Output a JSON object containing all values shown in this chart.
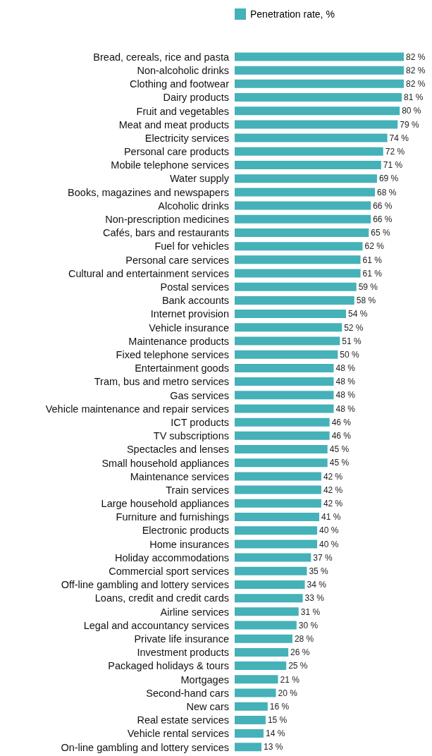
{
  "chart_data": {
    "type": "bar",
    "orientation": "horizontal",
    "legend": "top",
    "categories": [
      "Bread, cereals, rice and pasta",
      "Non-alcoholic drinks",
      "Clothing and footwear",
      "Dairy products",
      "Fruit and vegetables",
      "Meat and meat products",
      "Electricity services",
      "Personal care products",
      "Mobile telephone services",
      "Water supply",
      "Books, magazines and newspapers",
      "Alcoholic drinks",
      "Non-prescription medicines",
      "Cafés, bars and restaurants",
      "Fuel for vehicles",
      "Personal care services",
      "Cultural and entertainment services",
      "Postal services",
      "Bank accounts",
      "Internet provision",
      "Vehicle insurance",
      "Maintenance products",
      "Fixed telephone services",
      "Entertainment goods",
      "Tram, bus and metro services",
      "Gas services",
      "Vehicle maintenance and repair services",
      "ICT products",
      "TV subscriptions",
      "Spectacles and lenses",
      "Small household appliances",
      "Maintenance services",
      "Train services",
      "Large household appliances",
      "Furniture and furnishings",
      "Electronic products",
      "Home insurances",
      "Holiday accommodations",
      "Commercial sport services",
      "Off-line gambling and lottery services",
      "Loans, credit and credit cards",
      "Airline services",
      "Legal and accountancy services",
      "Private life insurance",
      "Investment products",
      "Packaged holidays & tours",
      "Mortgages",
      "Second-hand cars",
      "New cars",
      "Real estate services",
      "Vehicle rental services",
      "On-line gambling and lottery services"
    ],
    "series": [
      {
        "name": "Penetration rate, %",
        "color": "#45b1b8",
        "values": [
          82,
          82,
          82,
          81,
          80,
          79,
          74,
          72,
          71,
          69,
          68,
          66,
          66,
          65,
          62,
          61,
          61,
          59,
          58,
          54,
          52,
          51,
          50,
          48,
          48,
          48,
          48,
          46,
          46,
          45,
          45,
          42,
          42,
          42,
          41,
          40,
          40,
          37,
          35,
          34,
          33,
          31,
          30,
          28,
          26,
          25,
          21,
          20,
          16,
          15,
          14,
          13
        ],
        "value_labels": [
          "82 %",
          "82 %",
          "82 %",
          "81 %",
          "80 %",
          "79 %",
          "74 %",
          "72 %",
          "71 %",
          "69 %",
          "68 %",
          "66 %",
          "66 %",
          "65 %",
          "62 %",
          "61 %",
          "61 %",
          "59 %",
          "58 %",
          "54 %",
          "52 %",
          "51 %",
          "50 %",
          "48 %",
          "48 %",
          "48 %",
          "48 %",
          "46 %",
          "46 %",
          "45 %",
          "45 %",
          "42 %",
          "42 %",
          "42 %",
          "41 %",
          "40 %",
          "40 %",
          "37 %",
          "35 %",
          "34 %",
          "33 %",
          "31 %",
          "30 %",
          "28 %",
          "26 %",
          "25 %",
          "21 %",
          "20 %",
          "16 %",
          "15 %",
          "14 %",
          "13 %"
        ]
      }
    ]
  }
}
